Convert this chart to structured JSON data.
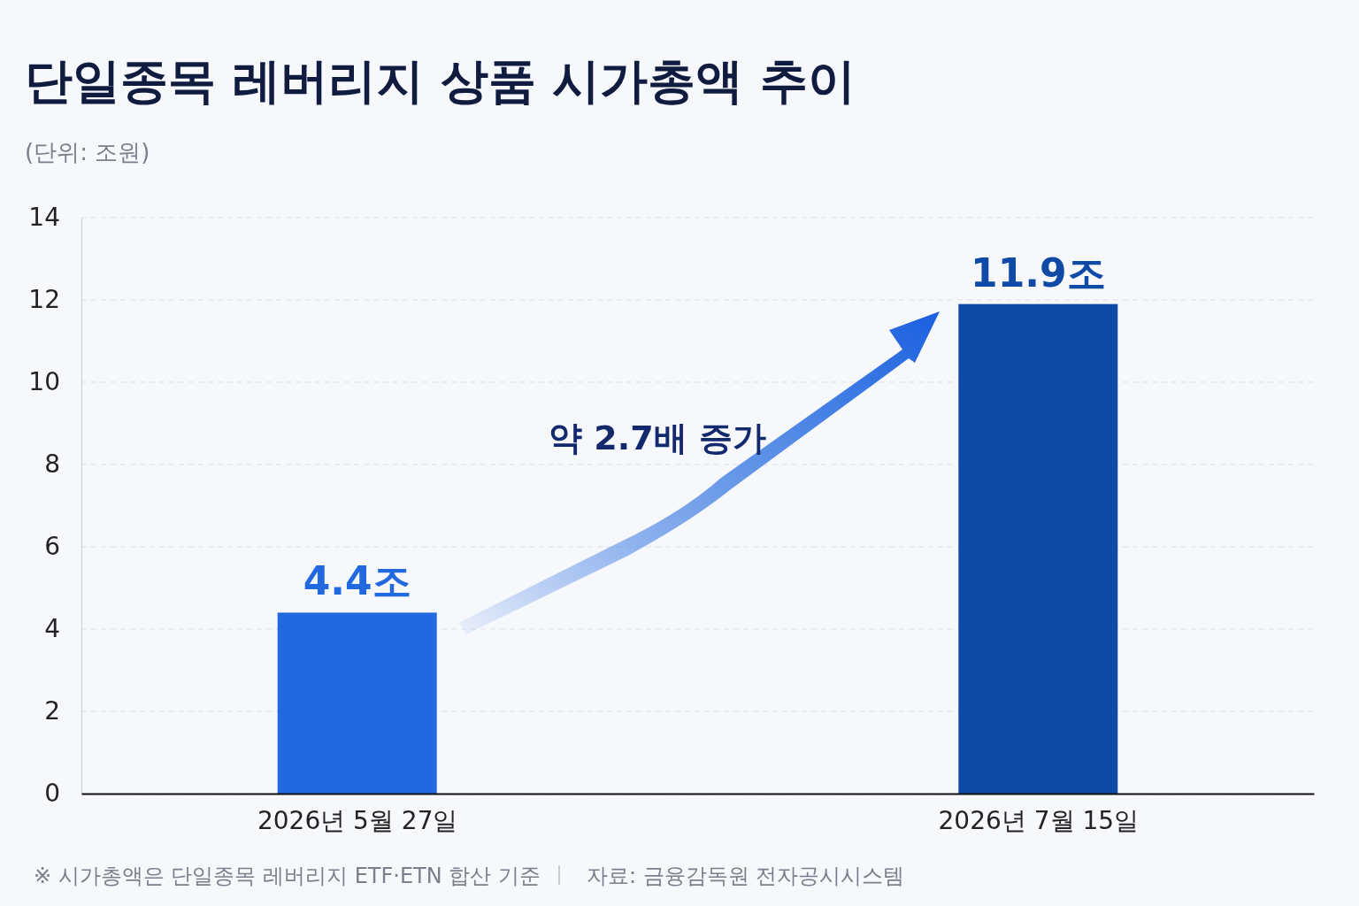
{
  "chart_data": {
    "type": "bar",
    "title": "단일종목 레버리지 상품 시가총액 추이",
    "subtitle": "(단위: 조원)",
    "categories": [
      "2026년 5월 27일",
      "2026년 7월 15일"
    ],
    "values": [
      4.4,
      11.9
    ],
    "colors": [
      "#2269e0",
      "#0e4aa6"
    ],
    "value_labels": [
      "4.4조",
      "11.9조"
    ],
    "ylim": [
      0,
      14
    ],
    "yticks": [
      0,
      2,
      4,
      6,
      8,
      10,
      12,
      14
    ],
    "grid": "y",
    "annotations": [
      "약 2.7배 증가",
      "※ 시가총액은 단일종목 레버리지 ETF·ETN 합산 기준",
      "자료: 금융감독원 전자공시시스템"
    ]
  }
}
